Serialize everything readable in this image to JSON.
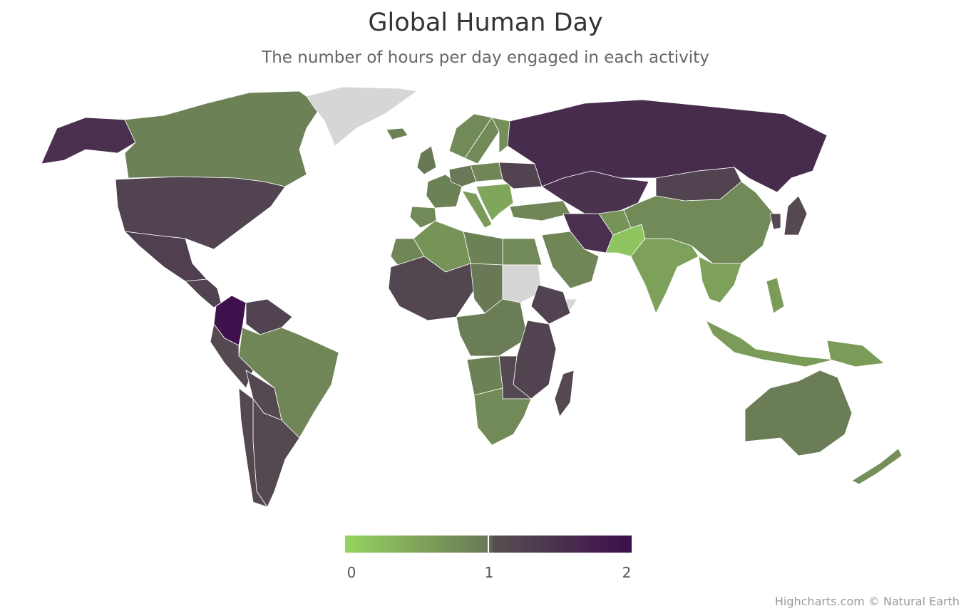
{
  "title": "Global Human Day",
  "subtitle": "The number of hours per day engaged in each activity",
  "credits": "Highcharts.com © Natural Earth",
  "colors": {
    "min": "#95d35f",
    "mid": "#697855",
    "high": "#565050",
    "max": "#3d0e4d",
    "no_data": "#d6d6d6",
    "border": "#ffffff"
  },
  "legend": {
    "min": 0,
    "max": 2,
    "labels": [
      "0",
      "1",
      "2"
    ]
  },
  "chart_data": {
    "type": "map",
    "title": "Global Human Day",
    "subtitle": "The number of hours per day engaged in each activity",
    "color_axis": {
      "min": 0,
      "max": 2,
      "stops": [
        "#95d35f",
        "#697855",
        "#565050",
        "#3d0e4d"
      ]
    },
    "regions": [
      {
        "name": "Alaska",
        "value": 1.5
      },
      {
        "name": "Canada",
        "value": 0.9
      },
      {
        "name": "Greenland",
        "value": null
      },
      {
        "name": "United States",
        "value": 1.2
      },
      {
        "name": "Mexico",
        "value": 1.25
      },
      {
        "name": "Central America",
        "value": 1.2
      },
      {
        "name": "Colombia",
        "value": 1.95
      },
      {
        "name": "Venezuela",
        "value": 1.2
      },
      {
        "name": "Brazil",
        "value": 0.85
      },
      {
        "name": "Peru",
        "value": 1.1
      },
      {
        "name": "Bolivia",
        "value": 1.1
      },
      {
        "name": "Argentina",
        "value": 1.1
      },
      {
        "name": "Chile",
        "value": 1.1
      },
      {
        "name": "Iceland",
        "value": 0.9
      },
      {
        "name": "Norway",
        "value": 0.8
      },
      {
        "name": "Sweden",
        "value": 0.8
      },
      {
        "name": "Finland",
        "value": 0.75
      },
      {
        "name": "United Kingdom",
        "value": 1.0
      },
      {
        "name": "France",
        "value": 0.9
      },
      {
        "name": "Spain",
        "value": 0.8
      },
      {
        "name": "Germany",
        "value": 1.0
      },
      {
        "name": "Poland",
        "value": 0.85
      },
      {
        "name": "Italy",
        "value": 0.6
      },
      {
        "name": "Balkans",
        "value": 0.5
      },
      {
        "name": "Ukraine",
        "value": 1.2
      },
      {
        "name": "Turkey",
        "value": 0.85
      },
      {
        "name": "Russia",
        "value": 1.55
      },
      {
        "name": "Kazakhstan",
        "value": 1.45
      },
      {
        "name": "Mongolia",
        "value": 1.2
      },
      {
        "name": "Iran",
        "value": 1.5
      },
      {
        "name": "Afghanistan",
        "value": 0.7
      },
      {
        "name": "Pakistan",
        "value": 0.15
      },
      {
        "name": "India",
        "value": 0.55
      },
      {
        "name": "China",
        "value": 0.8
      },
      {
        "name": "Japan",
        "value": 1.1
      },
      {
        "name": "Korea",
        "value": 1.1
      },
      {
        "name": "Southeast Asia",
        "value": 0.55
      },
      {
        "name": "Indonesia",
        "value": 0.6
      },
      {
        "name": "Philippines",
        "value": 0.6
      },
      {
        "name": "Papua New Guinea",
        "value": 0.6
      },
      {
        "name": "Australia",
        "value": 0.95
      },
      {
        "name": "New Zealand",
        "value": 0.75
      },
      {
        "name": "Saudi Arabia",
        "value": 0.85
      },
      {
        "name": "Egypt",
        "value": 0.8
      },
      {
        "name": "Libya",
        "value": 0.9
      },
      {
        "name": "Algeria",
        "value": 0.7
      },
      {
        "name": "Morocco",
        "value": 0.85
      },
      {
        "name": "West Africa",
        "value": 1.15
      },
      {
        "name": "Chad",
        "value": 1.0
      },
      {
        "name": "Sudan",
        "value": null
      },
      {
        "name": "Somalia",
        "value": null
      },
      {
        "name": "Ethiopia",
        "value": 1.2
      },
      {
        "name": "Central Africa",
        "value": 0.95
      },
      {
        "name": "East Africa",
        "value": 1.2
      },
      {
        "name": "Angola",
        "value": 0.9
      },
      {
        "name": "Zambia",
        "value": 1.1
      },
      {
        "name": "South Africa",
        "value": 0.8
      },
      {
        "name": "Madagascar",
        "value": 1.1
      }
    ]
  }
}
